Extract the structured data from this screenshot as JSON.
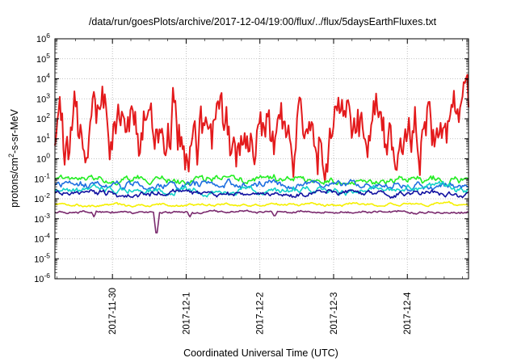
{
  "chart_data": {
    "type": "line",
    "title": "/data/run/goesPlots/archive/2017-12-04/19:00/flux/../flux/5daysEarthFluxes.txt",
    "xlabel": "Coordinated Universal Time (UTC)",
    "ylabel_parts": [
      "protons/cm",
      "2",
      "-s-sr-MeV"
    ],
    "y_scale": "log",
    "ylim_exponents": [
      -6,
      6
    ],
    "y_tick_base": "10",
    "y_tick_exponents": [
      "-6",
      "-5",
      "-4",
      "-3",
      "-2",
      "-1",
      "0",
      "1",
      "2",
      "3",
      "4",
      "5",
      "6"
    ],
    "x_range_days": [
      29.22,
      34.83
    ],
    "x_ticks": [
      {
        "label": "2017-11-30",
        "day": 30
      },
      {
        "label": "2017-12-1",
        "day": 31
      },
      {
        "label": "2017-12-2",
        "day": 32
      },
      {
        "label": "2017-12-3",
        "day": 33
      },
      {
        "label": "2017-12-4",
        "day": 34
      }
    ],
    "grid": true,
    "legend": "none",
    "series": [
      {
        "color": "#e31a1c",
        "base_log": 1.3,
        "amp": 1.2,
        "seed": 11,
        "events": [
          {
            "day": 30.82,
            "log": 4.2
          },
          {
            "day": 30.85,
            "log": 2.9
          },
          {
            "day": 31.55,
            "log": 2.6
          },
          {
            "day": 32.55,
            "log": 3.0
          },
          {
            "day": 33.1,
            "log": 2.4
          },
          {
            "day": 34.1,
            "log": 2.6
          },
          {
            "day": 31.15,
            "log": -0.3
          },
          {
            "day": 29.35,
            "log": -0.3
          }
        ]
      },
      {
        "color": "#22ee22",
        "base_log": -1.05,
        "amp": 0.15,
        "seed": 21,
        "events": []
      },
      {
        "color": "#1e6fe0",
        "base_log": -1.3,
        "amp": 0.15,
        "seed": 31,
        "events": []
      },
      {
        "color": "#14d2c8",
        "base_log": -1.55,
        "amp": 0.15,
        "seed": 41,
        "events": []
      },
      {
        "color": "#1010a0",
        "base_log": -1.75,
        "amp": 0.12,
        "seed": 51,
        "events": []
      },
      {
        "color": "#f5f000",
        "base_log": -2.3,
        "amp": 0.06,
        "seed": 61,
        "events": []
      },
      {
        "color": "#7a2a6e",
        "base_log": -2.65,
        "amp": 0.05,
        "seed": 71,
        "events": [
          {
            "day": 30.6,
            "log": -3.7
          },
          {
            "day": 29.75,
            "log": -2.9
          },
          {
            "day": 31.05,
            "log": -2.9
          },
          {
            "day": 32.2,
            "log": -2.85
          }
        ]
      }
    ]
  }
}
